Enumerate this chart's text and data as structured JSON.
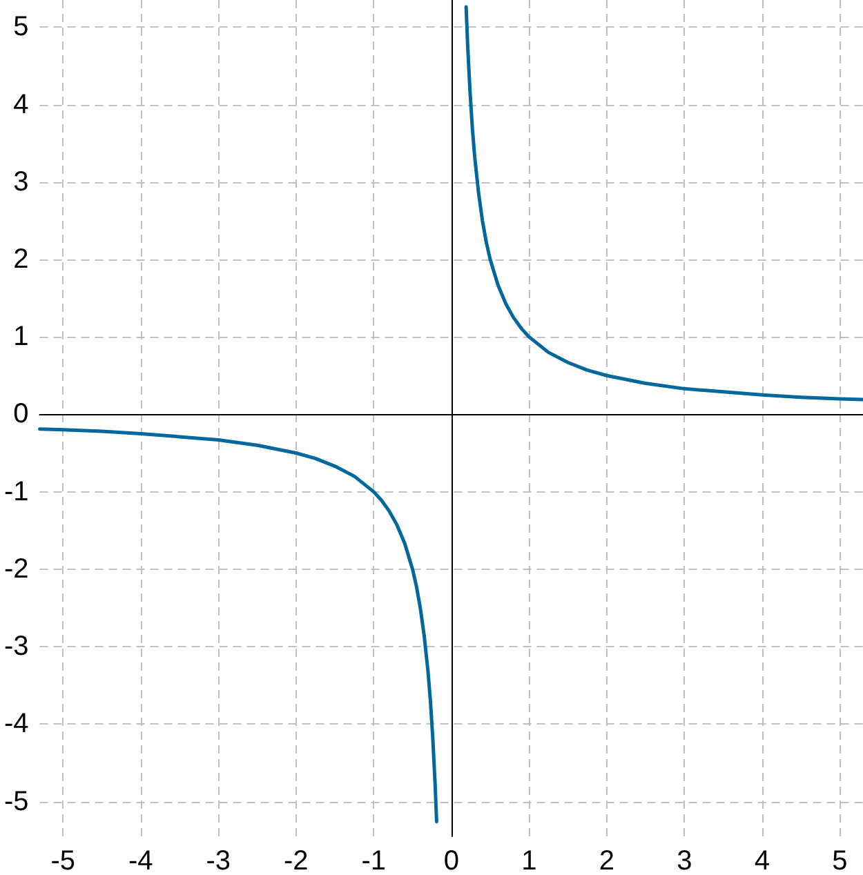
{
  "chart_data": {
    "type": "line",
    "xlim": [
      -5.3,
      5.3
    ],
    "ylim": [
      -5.45,
      5.35
    ],
    "xticks": [
      -5,
      -4,
      -3,
      -2,
      -1,
      0,
      1,
      2,
      3,
      4,
      5
    ],
    "yticks": [
      -5,
      -4,
      -3,
      -2,
      -1,
      0,
      1,
      2,
      3,
      4,
      5
    ],
    "grid": true,
    "series": [
      {
        "color": "#00689c",
        "x": [
          -5.3,
          -5,
          -4.5,
          -4,
          -3.5,
          -3,
          -2.5,
          -2,
          -1.75,
          -1.5,
          -1.25,
          -1,
          -0.9,
          -0.8,
          -0.7,
          -0.6,
          -0.5,
          -0.45,
          -0.4,
          -0.35,
          -0.3,
          -0.27,
          -0.24,
          -0.21,
          -0.19
        ],
        "values": [
          -0.19,
          -0.2,
          -0.22,
          -0.25,
          -0.29,
          -0.33,
          -0.4,
          -0.5,
          -0.57,
          -0.67,
          -0.8,
          -1,
          -1.11,
          -1.25,
          -1.43,
          -1.67,
          -2,
          -2.22,
          -2.5,
          -2.86,
          -3.33,
          -3.7,
          -4.17,
          -4.76,
          -5.26
        ]
      },
      {
        "color": "#00689c",
        "x": [
          0.19,
          0.21,
          0.24,
          0.27,
          0.3,
          0.35,
          0.4,
          0.45,
          0.5,
          0.6,
          0.7,
          0.8,
          0.9,
          1,
          1.25,
          1.5,
          1.75,
          2,
          2.5,
          3,
          3.5,
          4,
          4.5,
          5,
          5.3
        ],
        "values": [
          5.26,
          4.76,
          4.17,
          3.7,
          3.33,
          2.86,
          2.5,
          2.22,
          2,
          1.67,
          1.43,
          1.25,
          1.11,
          1,
          0.8,
          0.67,
          0.57,
          0.5,
          0.4,
          0.33,
          0.29,
          0.25,
          0.22,
          0.2,
          0.19
        ]
      }
    ]
  }
}
